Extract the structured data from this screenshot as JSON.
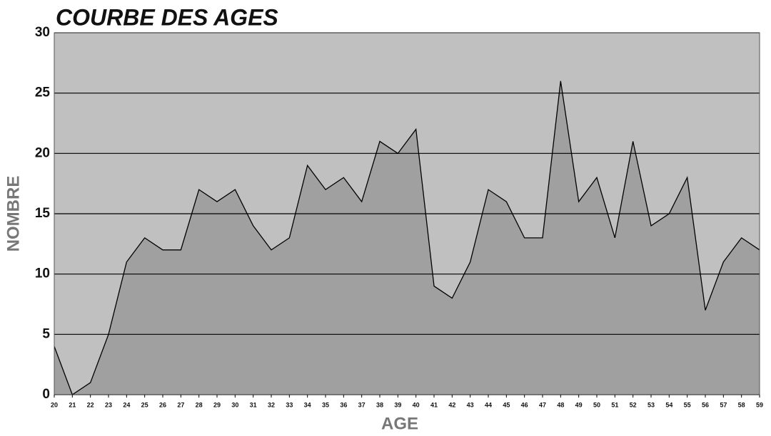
{
  "chart_data": {
    "type": "area",
    "title": "COURBE DES AGES",
    "x_label": "AGE",
    "y_label": "NOMBRE",
    "x": [
      20,
      21,
      22,
      23,
      24,
      25,
      26,
      27,
      28,
      29,
      30,
      31,
      32,
      33,
      34,
      35,
      36,
      37,
      38,
      39,
      40,
      41,
      42,
      43,
      44,
      45,
      46,
      47,
      48,
      49,
      50,
      51,
      52,
      53,
      54,
      55,
      56,
      57,
      58,
      59
    ],
    "values": [
      4,
      0,
      1,
      5,
      11,
      13,
      12,
      12,
      17,
      16,
      17,
      14,
      12,
      13,
      19,
      17,
      18,
      16,
      21,
      20,
      22,
      9,
      8,
      11,
      17,
      16,
      13,
      13,
      26,
      16,
      18,
      13,
      21,
      14,
      15,
      18,
      7,
      11,
      13,
      12
    ],
    "color": "#a0a0a0",
    "line_color": "#000000",
    "background": "#c0c0c0",
    "xlim": [
      20,
      59
    ],
    "xticks": [
      20,
      21,
      22,
      23,
      24,
      25,
      26,
      27,
      28,
      29,
      30,
      31,
      32,
      33,
      34,
      35,
      36,
      37,
      38,
      39,
      40,
      41,
      42,
      43,
      44,
      45,
      46,
      47,
      48,
      49,
      50,
      51,
      52,
      53,
      54,
      55,
      56,
      57,
      58,
      59
    ],
    "ylim": [
      0,
      30
    ],
    "yticks": [
      0,
      5,
      10,
      15,
      20,
      25,
      30
    ],
    "grid": true
  }
}
